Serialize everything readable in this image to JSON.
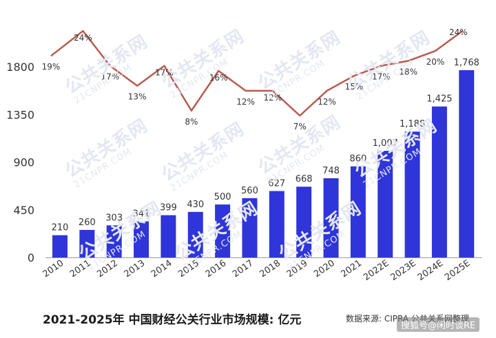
{
  "title": "2021-2025年 中国财经公关行业市场规模: 亿元",
  "source": "数据来源: CIPRA 公共关系网整理",
  "brand_badge": "搜狐号@闲时谈RE",
  "watermark": {
    "text_cn": "公共关系网",
    "text_en": "21CNPR.COM"
  },
  "colors": {
    "bar": "#2f35d8",
    "line": "#b85a4f",
    "axis": "#999999"
  },
  "chart_data": {
    "type": "bar",
    "categories": [
      "2010",
      "2011",
      "2012",
      "2013",
      "2014",
      "2015",
      "2016",
      "2017",
      "2018",
      "2019",
      "2020",
      "2021",
      "2022E",
      "2023E",
      "2024E",
      "2025E"
    ],
    "bar_labels": [
      "210",
      "260",
      "303",
      "341",
      "399",
      "430",
      "500",
      "560",
      "627",
      "668",
      "748",
      "860",
      "1,007",
      "1,188",
      "1,425",
      "1,768"
    ],
    "values": [
      210,
      260,
      303,
      341,
      399,
      430,
      500,
      560,
      627,
      668,
      748,
      860,
      1007,
      1188,
      1425,
      1768
    ],
    "ylim": [
      0,
      1800
    ],
    "yticks": [
      0,
      450,
      900,
      1350,
      1800
    ],
    "growth_labels": [
      "19%",
      "24%",
      "17%",
      "13%",
      "17%",
      "8%",
      "16%",
      "12%",
      "12%",
      "7%",
      "12%",
      "15%",
      "17%",
      "18%",
      "20%",
      "24%"
    ],
    "growth_values": [
      19,
      24,
      17,
      13,
      17,
      8,
      16,
      12,
      12,
      7,
      12,
      15,
      17,
      18,
      20,
      24
    ],
    "grid": false
  }
}
